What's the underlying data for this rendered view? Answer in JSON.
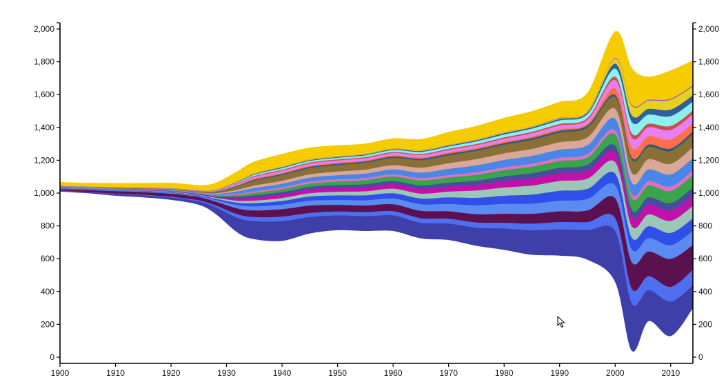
{
  "chart_data": {
    "type": "area",
    "x_range": [
      1900,
      2014
    ],
    "ylim": [
      0,
      2000
    ],
    "x_ticks": [
      "1900",
      "1910",
      "1920",
      "1930",
      "1940",
      "1950",
      "1960",
      "1970",
      "1980",
      "1990",
      "2000",
      "2010"
    ],
    "y_ticks": [
      "0",
      "200",
      "400",
      "600",
      "800",
      "1,000",
      "1,200",
      "1,400",
      "1,600",
      "1,800",
      "2,000"
    ],
    "grid": false,
    "title": "",
    "xlabel": "",
    "ylabel": "",
    "baseline": "centered streamgraph (silhouette around ~1000)",
    "x": [
      1900,
      1905,
      1910,
      1915,
      1920,
      1925,
      1928,
      1932,
      1935,
      1940,
      1945,
      1950,
      1955,
      1960,
      1965,
      1970,
      1975,
      1980,
      1985,
      1990,
      1995,
      2000,
      2003,
      2006,
      2010,
      2014
    ],
    "bottom_edge": [
      1010,
      1000,
      985,
      975,
      960,
      930,
      875,
      760,
      720,
      710,
      755,
      775,
      770,
      770,
      725,
      715,
      680,
      655,
      625,
      620,
      595,
      460,
      40,
      220,
      130,
      300
    ],
    "layer_weights": [
      9,
      4,
      3,
      3,
      2,
      2,
      1,
      1,
      1,
      1,
      1,
      1,
      1,
      1,
      1,
      1,
      1,
      1,
      1,
      1,
      1,
      1,
      1,
      1,
      1,
      1,
      1,
      1,
      1,
      1,
      1,
      1,
      1,
      1,
      1,
      1,
      3
    ],
    "series": [
      {
        "color": "#3f3fa9",
        "values": [
          5,
          5,
          10,
          12,
          14,
          20,
          40,
          90,
          110,
          120,
          100,
          90,
          90,
          95,
          95,
          100,
          110,
          130,
          150,
          160,
          180,
          310,
          290,
          190,
          210,
          140
        ]
      },
      {
        "color": "#4f6ff0",
        "values": [
          2,
          2,
          3,
          4,
          5,
          7,
          12,
          22,
          25,
          28,
          25,
          24,
          25,
          26,
          28,
          30,
          32,
          35,
          40,
          45,
          50,
          80,
          90,
          85,
          90,
          95
        ]
      },
      {
        "color": "#5b1050",
        "values": [
          8,
          12,
          15,
          16,
          18,
          20,
          22,
          35,
          40,
          45,
          45,
          40,
          40,
          42,
          45,
          45,
          50,
          55,
          60,
          65,
          70,
          120,
          160,
          150,
          170,
          150
        ]
      },
      {
        "color": "#5b8af0",
        "values": [
          2,
          3,
          4,
          5,
          5,
          6,
          10,
          20,
          25,
          28,
          30,
          30,
          32,
          35,
          40,
          45,
          55,
          60,
          62,
          65,
          70,
          80,
          80,
          82,
          84,
          86
        ]
      },
      {
        "color": "#2f4fe8",
        "values": [
          2,
          2,
          2,
          3,
          4,
          5,
          8,
          15,
          20,
          22,
          25,
          28,
          30,
          32,
          35,
          40,
          45,
          50,
          55,
          60,
          62,
          70,
          70,
          72,
          74,
          76
        ]
      },
      {
        "color": "#9cc7b8",
        "values": [
          1,
          1,
          2,
          2,
          3,
          3,
          6,
          12,
          15,
          18,
          20,
          22,
          25,
          28,
          30,
          35,
          45,
          50,
          55,
          60,
          62,
          70,
          70,
          72,
          74,
          76
        ]
      },
      {
        "color": "#c012a8",
        "values": [
          1,
          1,
          1,
          2,
          2,
          3,
          5,
          15,
          20,
          22,
          24,
          25,
          26,
          28,
          30,
          32,
          35,
          40,
          45,
          48,
          50,
          60,
          60,
          62,
          64,
          66
        ]
      },
      {
        "color": "#444e9e",
        "values": [
          1,
          1,
          1,
          1,
          2,
          2,
          4,
          10,
          12,
          14,
          15,
          16,
          17,
          18,
          20,
          22,
          25,
          28,
          30,
          32,
          34,
          40,
          40,
          42,
          44,
          46
        ]
      },
      {
        "color": "#3aa44a",
        "values": [
          1,
          1,
          1,
          1,
          1,
          2,
          4,
          10,
          15,
          18,
          20,
          22,
          25,
          28,
          30,
          32,
          35,
          38,
          40,
          42,
          45,
          70,
          70,
          72,
          74,
          76
        ]
      },
      {
        "color": "#e070c0",
        "values": [
          1,
          1,
          1,
          1,
          1,
          2,
          3,
          8,
          10,
          11,
          12,
          12,
          12,
          13,
          14,
          15,
          16,
          17,
          18,
          19,
          20,
          25,
          25,
          26,
          27,
          28
        ]
      },
      {
        "color": "#4a86e8",
        "values": [
          2,
          2,
          2,
          2,
          3,
          3,
          6,
          15,
          20,
          22,
          24,
          26,
          28,
          30,
          34,
          38,
          42,
          45,
          48,
          50,
          55,
          70,
          70,
          72,
          74,
          76
        ]
      },
      {
        "color": "#d9a898",
        "values": [
          1,
          1,
          1,
          1,
          2,
          2,
          4,
          10,
          15,
          18,
          20,
          22,
          24,
          26,
          30,
          34,
          38,
          40,
          42,
          45,
          48,
          60,
          60,
          62,
          64,
          66
        ]
      },
      {
        "color": "#8a7036",
        "values": [
          2,
          2,
          3,
          3,
          4,
          5,
          8,
          20,
          30,
          35,
          38,
          40,
          42,
          44,
          46,
          48,
          50,
          52,
          55,
          58,
          60,
          70,
          80,
          75,
          78,
          80
        ]
      },
      {
        "color": "#2d5f7a",
        "values": [
          1,
          1,
          1,
          1,
          1,
          1,
          2,
          4,
          6,
          7,
          8,
          8,
          8,
          9,
          9,
          10,
          10,
          11,
          12,
          12,
          13,
          15,
          15,
          15,
          16,
          16
        ]
      },
      {
        "color": "#ff6f4a",
        "values": [
          1,
          1,
          1,
          1,
          1,
          1,
          2,
          4,
          5,
          6,
          6,
          6,
          6,
          6,
          7,
          7,
          8,
          8,
          9,
          10,
          10,
          40,
          60,
          50,
          55,
          50
        ]
      },
      {
        "color": "#e87ff0",
        "values": [
          1,
          1,
          1,
          1,
          1,
          2,
          3,
          8,
          12,
          13,
          14,
          14,
          14,
          15,
          15,
          16,
          17,
          18,
          20,
          22,
          24,
          50,
          60,
          55,
          58,
          55
        ]
      },
      {
        "color": "#c8504a",
        "values": [
          1,
          1,
          1,
          1,
          1,
          1,
          2,
          4,
          5,
          6,
          6,
          6,
          6,
          6,
          6,
          7,
          7,
          8,
          8,
          9,
          10,
          20,
          25,
          22,
          24,
          22
        ]
      },
      {
        "color": "#8ef0ee",
        "values": [
          1,
          1,
          1,
          1,
          1,
          1,
          2,
          5,
          8,
          10,
          10,
          10,
          11,
          12,
          13,
          14,
          16,
          18,
          20,
          22,
          24,
          50,
          70,
          55,
          60,
          55
        ]
      },
      {
        "color": "#2f5f9e",
        "values": [
          1,
          1,
          1,
          1,
          1,
          1,
          1,
          3,
          4,
          5,
          5,
          5,
          5,
          5,
          6,
          6,
          7,
          8,
          8,
          9,
          10,
          30,
          40,
          35,
          40,
          38
        ]
      },
      {
        "color": "#e8d020",
        "values": [
          1,
          1,
          1,
          1,
          1,
          1,
          1,
          2,
          3,
          3,
          3,
          3,
          3,
          3,
          4,
          4,
          4,
          5,
          5,
          5,
          6,
          30,
          60,
          50,
          60,
          55
        ]
      },
      {
        "color": "#8a50e0",
        "values": [
          0,
          0,
          0,
          0,
          0,
          0,
          1,
          1,
          1,
          1,
          1,
          1,
          1,
          1,
          1,
          1,
          1,
          1,
          1,
          2,
          2,
          4,
          6,
          5,
          6,
          6
        ]
      },
      {
        "color": "#f5cc00",
        "values": [
          20,
          20,
          22,
          25,
          30,
          30,
          40,
          60,
          70,
          75,
          70,
          65,
          60,
          60,
          65,
          75,
          80,
          85,
          90,
          95,
          110,
          160,
          220,
          140,
          170,
          150
        ]
      }
    ]
  }
}
